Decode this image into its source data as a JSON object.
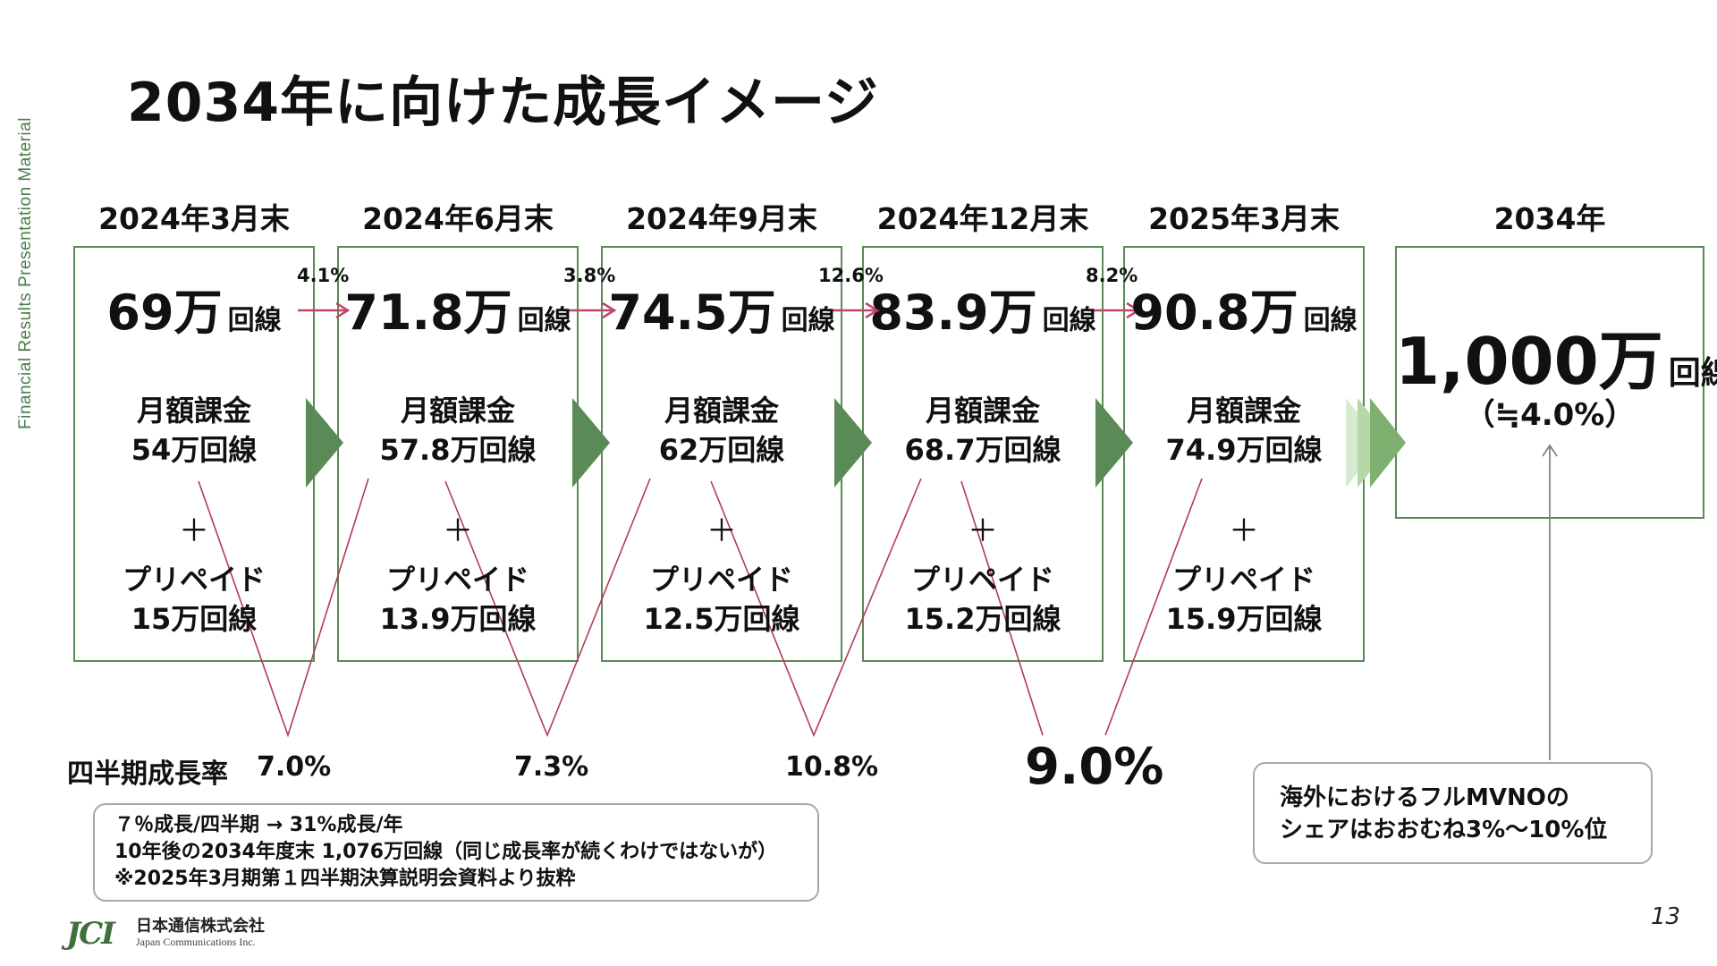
{
  "title": "2034年に向けた成長イメージ",
  "side_label": "Financial Results Presentation Material",
  "page_number": "13",
  "colors": {
    "accent_green": "#5a8a55",
    "arrow_pink": "#c0456e",
    "line_pink": "#b03a5e"
  },
  "periods": [
    {
      "label": "2024年3月末",
      "main_value": "69万",
      "main_unit": "回線",
      "sub_title": "月額課金",
      "sub_value": "54万回線",
      "plus": "＋",
      "prepaid_title": "プリペイド",
      "prepaid_value": "15万回線"
    },
    {
      "label": "2024年6月末",
      "main_value": "71.8万",
      "main_unit": "回線",
      "sub_title": "月額課金",
      "sub_value": "57.8万回線",
      "plus": "＋",
      "prepaid_title": "プリペイド",
      "prepaid_value": "13.9万回線"
    },
    {
      "label": "2024年9月末",
      "main_value": "74.5万",
      "main_unit": "回線",
      "sub_title": "月額課金",
      "sub_value": "62万回線",
      "plus": "＋",
      "prepaid_title": "プリペイド",
      "prepaid_value": "12.5万回線"
    },
    {
      "label": "2024年12月末",
      "main_value": "83.9万",
      "main_unit": "回線",
      "sub_title": "月額課金",
      "sub_value": "68.7万回線",
      "plus": "＋",
      "prepaid_title": "プリペイド",
      "prepaid_value": "15.2万回線"
    },
    {
      "label": "2025年3月末",
      "main_value": "90.8万",
      "main_unit": "回線",
      "sub_title": "月額課金",
      "sub_value": "74.9万回線",
      "plus": "＋",
      "prepaid_title": "プリペイド",
      "prepaid_value": "15.9万回線"
    }
  ],
  "growth_between": [
    "4.1%",
    "3.8%",
    "12.6%",
    "8.2%"
  ],
  "target": {
    "label": "2034年",
    "main_value": "1,000万",
    "main_unit": "回線",
    "share": "（≒4.0%）"
  },
  "quarterly_rate_label": "四半期成長率",
  "quarterly_rates": [
    "7.0%",
    "7.3%",
    "10.8%",
    "9.0%"
  ],
  "note_left": [
    "７％成長/四半期 → 31%成長/年",
    "10年後の2034年度末 1,076万回線（同じ成長率が続くわけではないが）",
    "※2025年3月期第１四半期決算説明会資料より抜粋"
  ],
  "note_right": [
    "海外におけるフルMVNOの",
    "シェアはおおむね3%〜10%位"
  ],
  "logo": {
    "mark": "JCI",
    "name_jp": "日本通信株式会社",
    "name_en": "Japan Communications Inc."
  }
}
